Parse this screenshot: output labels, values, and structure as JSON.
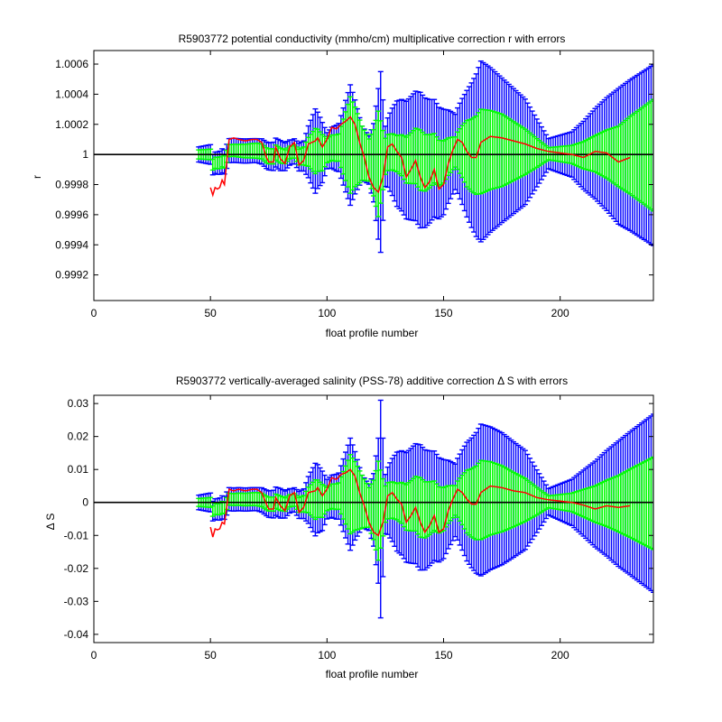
{
  "chart_data": [
    {
      "type": "line",
      "title": "R5903772 potential conductivity (mmho/cm) multiplicative correction r with errors",
      "xlabel": "float profile number",
      "ylabel": "r",
      "xlim": [
        0,
        240
      ],
      "ylim": [
        0.99903,
        1.00069
      ],
      "x_ticks": [
        0,
        50,
        100,
        150,
        200
      ],
      "y_ticks": [
        0.9992,
        0.9994,
        0.9996,
        0.9998,
        1,
        1.0002,
        1.0004,
        1.0006
      ],
      "y_tick_labels": [
        "0.9992",
        "0.9994",
        "0.9996",
        "0.9998",
        "1",
        "1.0002",
        "1.0004",
        "1.0006"
      ],
      "reference_line": 1,
      "colors": {
        "mean": "#ffffff",
        "wide_error": "#0000ff",
        "narrow_error": "#00ff00",
        "estimate": "#ff0000",
        "reference": "#000000"
      },
      "series": [
        {
          "role": "wide_error_half_width",
          "x": [
            45,
            55,
            60,
            70,
            80,
            85,
            90,
            95,
            98,
            100,
            105,
            110,
            115,
            118,
            120,
            122,
            123,
            125,
            130,
            140,
            150,
            155,
            160,
            166,
            175,
            185,
            195,
            205,
            215,
            225,
            240
          ],
          "values": [
            5e-05,
            8e-05,
            8e-05,
            8e-05,
            0.0001,
            8e-05,
            0.0001,
            0.00028,
            0.0002,
            0.00012,
            0.00016,
            0.0004,
            0.00018,
            0.00016,
            0.00026,
            0.0005,
            0.0006,
            0.0002,
            0.00035,
            0.00045,
            0.00035,
            0.00025,
            0.00042,
            0.0006,
            0.00048,
            0.00035,
            0.0001,
            0.00015,
            0.0003,
            0.00045,
            0.0006
          ]
        },
        {
          "role": "narrow_error_half_width",
          "x": [
            45,
            55,
            60,
            70,
            80,
            85,
            90,
            95,
            98,
            100,
            105,
            110,
            115,
            118,
            120,
            122,
            125,
            130,
            140,
            150,
            155,
            160,
            166,
            175,
            185,
            195,
            205,
            215,
            225,
            240
          ],
          "values": [
            3e-05,
            4e-05,
            4e-05,
            5e-05,
            5e-05,
            4e-05,
            6e-05,
            0.00015,
            0.00012,
            8e-05,
            9e-05,
            0.00032,
            0.00018,
            0.00014,
            0.00022,
            0.00035,
            0.00012,
            0.00012,
            0.0002,
            0.00014,
            0.0001,
            0.00022,
            0.00028,
            0.00024,
            0.00015,
            4e-05,
            6e-05,
            0.00012,
            0.0002,
            0.00037
          ]
        },
        {
          "role": "red_estimate",
          "x": [
            50,
            51,
            52,
            53,
            54,
            55,
            56,
            58,
            60,
            62,
            65,
            68,
            70,
            72,
            74,
            75,
            77,
            78,
            80,
            82,
            84,
            86,
            88,
            90,
            92,
            95,
            96,
            98,
            100,
            102,
            104,
            106,
            108,
            110,
            112,
            114,
            116,
            118,
            120,
            122,
            124,
            126,
            128,
            130,
            132,
            134,
            136,
            138,
            140,
            142,
            144,
            146,
            148,
            150,
            152,
            154,
            156,
            158,
            160,
            162,
            164,
            166,
            168,
            170,
            175,
            180,
            185,
            190,
            195,
            200,
            205,
            210,
            215,
            220,
            225,
            230
          ],
          "values": [
            0.99978,
            0.99973,
            0.99978,
            0.99977,
            0.99978,
            0.99983,
            0.9998,
            1.0001,
            1.00011,
            1.0001,
            1.00009,
            1.0001,
            1.0001,
            1.00008,
            0.99998,
            0.99995,
            0.99995,
            1.00005,
            0.99997,
            0.99994,
            1.00005,
            1.00008,
            0.99993,
            0.99996,
            1.00007,
            1.00009,
            1.00011,
            1.00005,
            1.0001,
            1.00018,
            1.00017,
            1.0002,
            1.00022,
            1.00025,
            1.0002,
            1.00008,
            0.99998,
            0.99985,
            0.99978,
            0.99975,
            0.99985,
            1.00005,
            1.00007,
            1.00002,
            0.99998,
            0.99985,
            0.9999,
            0.99996,
            0.99985,
            0.99978,
            0.99982,
            0.9999,
            0.99977,
            0.9998,
            0.99994,
            1.00003,
            1.0001,
            1.00008,
            1.00002,
            0.99998,
            0.99998,
            1.00008,
            1.0001,
            1.00012,
            1.00011,
            1.00009,
            1.00007,
            1.00004,
            1.00002,
            1.00001,
            1.0,
            0.99998,
            1.00002,
            1.00001,
            0.99995,
            0.99998
          ]
        }
      ]
    },
    {
      "type": "line",
      "title": "R5903772 vertically-averaged salinity (PSS-78) additive correction Δ S with errors",
      "xlabel": "float profile number",
      "ylabel": "Δ S",
      "xlim": [
        0,
        240
      ],
      "ylim": [
        -0.0425,
        0.0325
      ],
      "x_ticks": [
        0,
        50,
        100,
        150,
        200
      ],
      "y_ticks": [
        -0.04,
        -0.03,
        -0.02,
        -0.01,
        0,
        0.01,
        0.02,
        0.03
      ],
      "y_tick_labels": [
        "-0.04",
        "-0.03",
        "-0.02",
        "-0.01",
        "0",
        "0.01",
        "0.02",
        "0.03"
      ],
      "reference_line": 0,
      "colors": {
        "wide_error": "#0000ff",
        "narrow_error": "#00ff00",
        "estimate": "#ff0000",
        "reference": "#000000"
      },
      "series": [
        {
          "role": "wide_error_half_width",
          "x": [
            45,
            55,
            60,
            70,
            80,
            85,
            90,
            95,
            98,
            100,
            105,
            110,
            115,
            118,
            120,
            122,
            123,
            125,
            130,
            140,
            150,
            155,
            160,
            166,
            175,
            185,
            195,
            205,
            215,
            225,
            240
          ],
          "values": [
            0.0022,
            0.0035,
            0.0035,
            0.0035,
            0.0045,
            0.0035,
            0.0045,
            0.011,
            0.009,
            0.006,
            0.007,
            0.017,
            0.008,
            0.007,
            0.011,
            0.022,
            0.033,
            0.009,
            0.015,
            0.019,
            0.015,
            0.011,
            0.018,
            0.023,
            0.02,
            0.015,
            0.004,
            0.007,
            0.013,
            0.019,
            0.027
          ]
        },
        {
          "role": "narrow_error_half_width",
          "x": [
            45,
            55,
            60,
            70,
            80,
            85,
            90,
            95,
            98,
            100,
            105,
            110,
            115,
            118,
            120,
            122,
            125,
            130,
            140,
            150,
            155,
            160,
            166,
            175,
            185,
            195,
            205,
            215,
            225,
            240
          ],
          "values": [
            0.0012,
            0.0018,
            0.0018,
            0.002,
            0.0022,
            0.0018,
            0.0025,
            0.006,
            0.005,
            0.0035,
            0.004,
            0.012,
            0.008,
            0.006,
            0.009,
            0.015,
            0.0055,
            0.0055,
            0.009,
            0.0065,
            0.0045,
            0.0095,
            0.012,
            0.01,
            0.0065,
            0.0018,
            0.0028,
            0.0055,
            0.0085,
            0.014
          ]
        },
        {
          "role": "red_estimate",
          "x": [
            50,
            51,
            52,
            53,
            54,
            55,
            56,
            58,
            60,
            62,
            65,
            68,
            70,
            72,
            74,
            75,
            77,
            78,
            80,
            82,
            84,
            86,
            88,
            90,
            92,
            95,
            96,
            98,
            100,
            102,
            104,
            106,
            108,
            110,
            112,
            114,
            116,
            118,
            120,
            122,
            124,
            126,
            128,
            130,
            132,
            134,
            136,
            138,
            140,
            142,
            144,
            146,
            148,
            150,
            152,
            154,
            156,
            158,
            160,
            162,
            164,
            166,
            168,
            170,
            175,
            180,
            185,
            190,
            195,
            200,
            205,
            210,
            215,
            220,
            225,
            230
          ],
          "values": [
            -0.0075,
            -0.0105,
            -0.008,
            -0.0083,
            -0.008,
            -0.006,
            -0.0065,
            0.004,
            0.0035,
            0.004,
            0.0035,
            0.004,
            0.004,
            0.003,
            -0.0005,
            -0.002,
            -0.002,
            0.0015,
            -0.001,
            -0.0025,
            0.002,
            0.003,
            -0.003,
            -0.0015,
            0.003,
            0.0035,
            0.0045,
            0.002,
            0.004,
            0.0075,
            0.007,
            0.0085,
            0.009,
            0.01,
            0.008,
            0.003,
            -0.001,
            -0.006,
            -0.009,
            -0.01,
            -0.006,
            0.002,
            0.003,
            0.001,
            -0.0005,
            -0.006,
            -0.004,
            -0.0015,
            -0.006,
            -0.009,
            -0.007,
            -0.004,
            -0.009,
            -0.008,
            -0.0025,
            0.001,
            0.004,
            0.003,
            0.001,
            -0.0005,
            -0.0005,
            0.003,
            0.004,
            0.005,
            0.0045,
            0.0035,
            0.003,
            0.0015,
            0.0008,
            0.0004,
            0.0,
            -0.0008,
            -0.002,
            -0.001,
            -0.0015,
            -0.001
          ]
        }
      ]
    }
  ]
}
